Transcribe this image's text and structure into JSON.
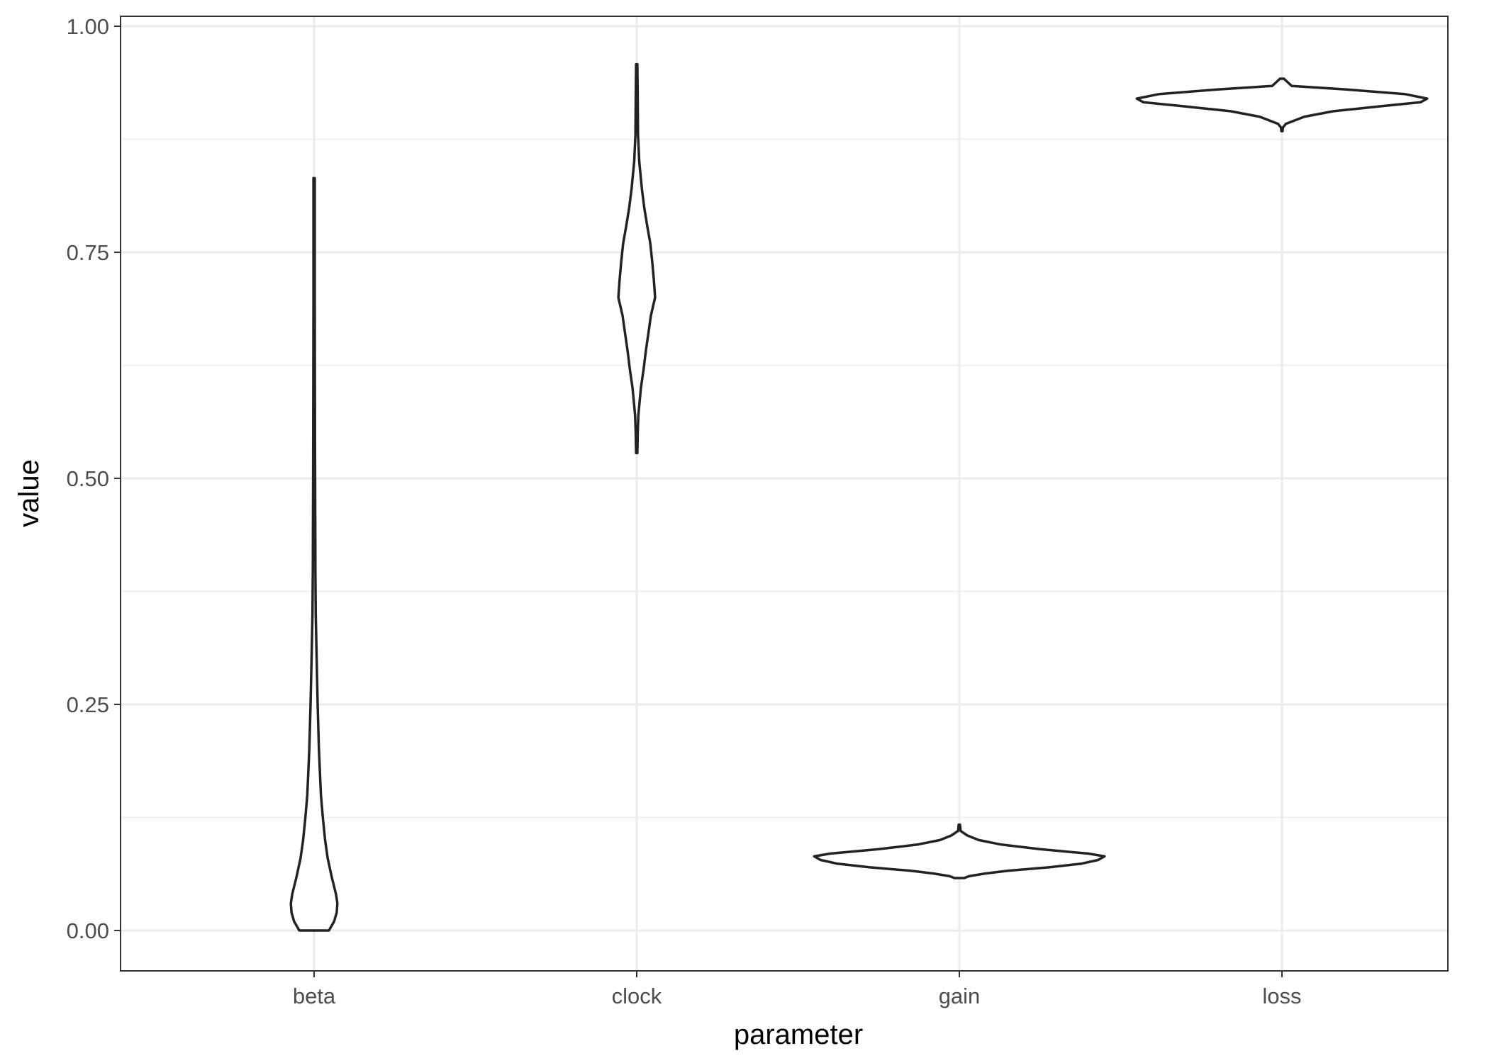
{
  "chart_data": {
    "type": "violin",
    "title": "",
    "xlabel": "parameter",
    "ylabel": "value",
    "ylim": [
      -0.045,
      1.003
    ],
    "y_ticks": [
      0.0,
      0.25,
      0.5,
      0.75,
      1.0
    ],
    "y_tick_labels": [
      "0.00",
      "0.25",
      "0.50",
      "0.75",
      "1.00"
    ],
    "y_minor_ticks": [
      0.125,
      0.375,
      0.625,
      0.875
    ],
    "categories": [
      "beta",
      "clock",
      "gain",
      "loss"
    ],
    "grid": true,
    "theme": "bw",
    "colors": {
      "outline": "#222222",
      "grid": "#ebebeb",
      "panel_border": "#333333",
      "tick_text": "#4d4d4d",
      "title_text": "#000000"
    },
    "violins": [
      {
        "category": "beta",
        "y_min": 0.0,
        "y_max": 0.832,
        "max_half_width": 0.072,
        "profile": [
          [
            0.0,
            0.046
          ],
          [
            0.01,
            0.062
          ],
          [
            0.02,
            0.07
          ],
          [
            0.03,
            0.072
          ],
          [
            0.04,
            0.068
          ],
          [
            0.06,
            0.054
          ],
          [
            0.08,
            0.042
          ],
          [
            0.1,
            0.034
          ],
          [
            0.125,
            0.027
          ],
          [
            0.15,
            0.021
          ],
          [
            0.2,
            0.015
          ],
          [
            0.25,
            0.011
          ],
          [
            0.3,
            0.008
          ],
          [
            0.35,
            0.005
          ],
          [
            0.4,
            0.004
          ],
          [
            0.5,
            0.003
          ],
          [
            0.6,
            0.0025
          ],
          [
            0.7,
            0.002
          ],
          [
            0.832,
            0.002
          ]
        ]
      },
      {
        "category": "clock",
        "y_min": 0.528,
        "y_max": 0.958,
        "max_half_width": 0.057,
        "profile": [
          [
            0.528,
            0.002
          ],
          [
            0.55,
            0.003
          ],
          [
            0.57,
            0.005
          ],
          [
            0.6,
            0.013
          ],
          [
            0.62,
            0.021
          ],
          [
            0.64,
            0.028
          ],
          [
            0.66,
            0.036
          ],
          [
            0.68,
            0.044
          ],
          [
            0.7,
            0.057
          ],
          [
            0.72,
            0.053
          ],
          [
            0.74,
            0.048
          ],
          [
            0.76,
            0.042
          ],
          [
            0.78,
            0.032
          ],
          [
            0.8,
            0.023
          ],
          [
            0.82,
            0.016
          ],
          [
            0.85,
            0.008
          ],
          [
            0.88,
            0.004
          ],
          [
            0.92,
            0.003
          ],
          [
            0.958,
            0.002
          ]
        ]
      },
      {
        "category": "gain",
        "y_min": 0.058,
        "y_max": 0.117,
        "max_half_width": 0.45,
        "profile": [
          [
            0.058,
            0.015
          ],
          [
            0.06,
            0.03
          ],
          [
            0.063,
            0.08
          ],
          [
            0.066,
            0.15
          ],
          [
            0.07,
            0.28
          ],
          [
            0.074,
            0.38
          ],
          [
            0.078,
            0.43
          ],
          [
            0.082,
            0.45
          ],
          [
            0.085,
            0.4
          ],
          [
            0.09,
            0.25
          ],
          [
            0.095,
            0.13
          ],
          [
            0.1,
            0.06
          ],
          [
            0.105,
            0.025
          ],
          [
            0.11,
            0.004
          ],
          [
            0.117,
            0.002
          ]
        ]
      },
      {
        "category": "loss",
        "y_min": 0.884,
        "y_max": 0.942,
        "max_half_width": 0.45,
        "profile": [
          [
            0.884,
            0.002
          ],
          [
            0.888,
            0.003
          ],
          [
            0.892,
            0.012
          ],
          [
            0.9,
            0.07
          ],
          [
            0.906,
            0.16
          ],
          [
            0.912,
            0.32
          ],
          [
            0.916,
            0.43
          ],
          [
            0.92,
            0.45
          ],
          [
            0.925,
            0.38
          ],
          [
            0.93,
            0.2
          ],
          [
            0.934,
            0.03
          ],
          [
            0.938,
            0.018
          ],
          [
            0.942,
            0.006
          ]
        ]
      }
    ]
  }
}
